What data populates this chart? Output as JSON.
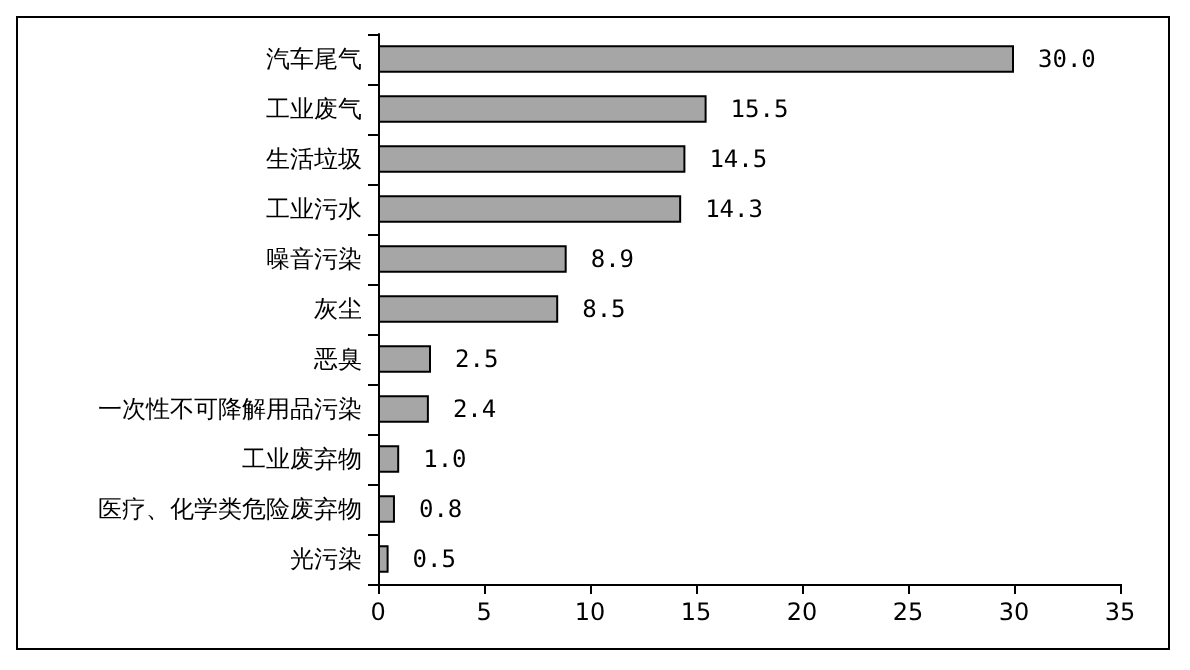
{
  "chart_data": {
    "type": "bar",
    "orientation": "horizontal",
    "categories": [
      "汽车尾气",
      "工业废气",
      "生活垃圾",
      "工业污水",
      "噪音污染",
      "灰尘",
      "恶臭",
      "一次性不可降解用品污染",
      "工业废弃物",
      "医疗、化学类危险废弃物",
      "光污染"
    ],
    "values": [
      30.0,
      15.5,
      14.5,
      14.3,
      8.9,
      8.5,
      2.5,
      2.4,
      1.0,
      0.8,
      0.5
    ],
    "value_labels": [
      "30.0",
      "15.5",
      "14.5",
      "14.3",
      "8.9",
      "8.5",
      "2.5",
      "2.4",
      "1.0",
      "0.8",
      "0.5"
    ],
    "color": "#a6a6a6",
    "xlim": [
      0,
      35
    ],
    "xticks": [
      0,
      5,
      10,
      15,
      20,
      25,
      30,
      35
    ],
    "grid": false
  }
}
